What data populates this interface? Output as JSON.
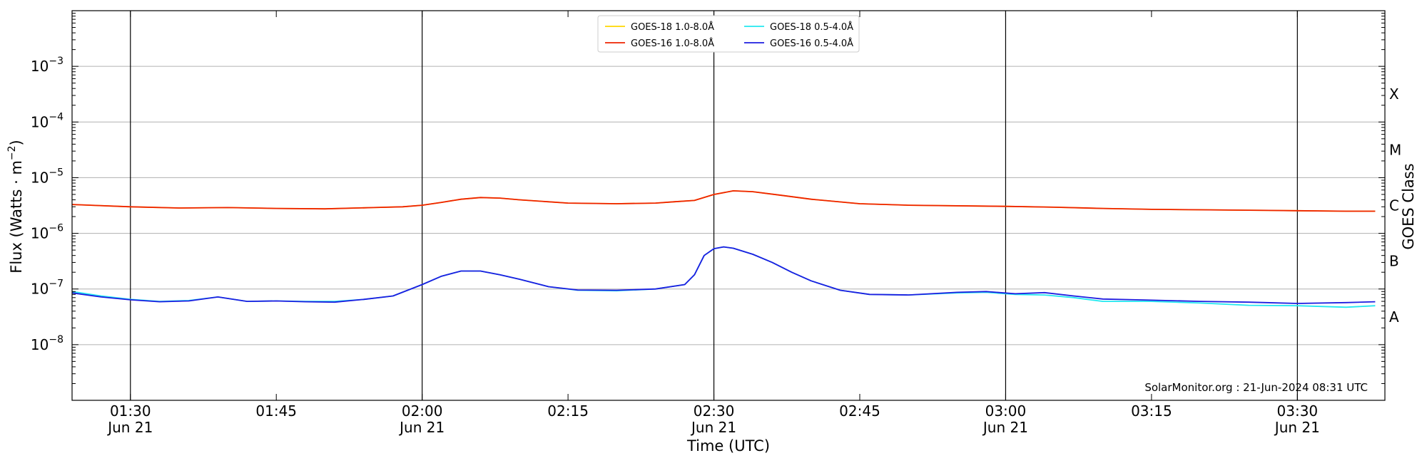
{
  "chart_data": {
    "type": "line",
    "title": "",
    "xlabel": "Time (UTC)",
    "ylabel": "Flux (Watts · m",
    "ylabel_exponent": "−2",
    "ylabel_close": ")",
    "right_label": "GOES Class",
    "y_scale": "log",
    "ylim": [
      1e-09,
      0.01
    ],
    "xlim": [
      "2024-06-21T01:24",
      "2024-06-21T03:39"
    ],
    "y_ticks": [
      {
        "value": 1e-08,
        "base": "10",
        "exp": "−8"
      },
      {
        "value": 1e-07,
        "base": "10",
        "exp": "−7"
      },
      {
        "value": 1e-06,
        "base": "10",
        "exp": "−6"
      },
      {
        "value": 1e-05,
        "base": "10",
        "exp": "−5"
      },
      {
        "value": 0.0001,
        "base": "10",
        "exp": "−4"
      },
      {
        "value": 0.001,
        "base": "10",
        "exp": "−3"
      }
    ],
    "x_ticks": [
      {
        "time": "2024-06-21T01:30",
        "label": "01:30",
        "sublabel": "Jun 21",
        "major": true
      },
      {
        "time": "2024-06-21T01:45",
        "label": "01:45",
        "sublabel": "",
        "major": false
      },
      {
        "time": "2024-06-21T02:00",
        "label": "02:00",
        "sublabel": "Jun 21",
        "major": true
      },
      {
        "time": "2024-06-21T02:15",
        "label": "02:15",
        "sublabel": "",
        "major": false
      },
      {
        "time": "2024-06-21T02:30",
        "label": "02:30",
        "sublabel": "Jun 21",
        "major": true
      },
      {
        "time": "2024-06-21T02:45",
        "label": "02:45",
        "sublabel": "",
        "major": false
      },
      {
        "time": "2024-06-21T03:00",
        "label": "03:00",
        "sublabel": "Jun 21",
        "major": true
      },
      {
        "time": "2024-06-21T03:15",
        "label": "03:15",
        "sublabel": "",
        "major": false
      },
      {
        "time": "2024-06-21T03:30",
        "label": "03:30",
        "sublabel": "Jun 21",
        "major": true
      }
    ],
    "goes_classes": [
      {
        "label": "A",
        "value": 1e-08
      },
      {
        "label": "B",
        "value": 1e-07
      },
      {
        "label": "C",
        "value": 1e-06
      },
      {
        "label": "M",
        "value": 1e-05
      },
      {
        "label": "X",
        "value": 0.0001
      }
    ],
    "grid": true,
    "legend_position": "top-center",
    "credit": "SolarMonitor.org : 21-Jun-2024 08:31 UTC",
    "series": [
      {
        "name": "GOES-18 1.0-8.0Å",
        "color": "#ffd700",
        "x": [
          "2024-06-21T01:24",
          "2024-06-21T01:30",
          "2024-06-21T01:35",
          "2024-06-21T01:40",
          "2024-06-21T01:45",
          "2024-06-21T01:50",
          "2024-06-21T01:55",
          "2024-06-21T01:58",
          "2024-06-21T02:00",
          "2024-06-21T02:02",
          "2024-06-21T02:04",
          "2024-06-21T02:06",
          "2024-06-21T02:08",
          "2024-06-21T02:10",
          "2024-06-21T02:15",
          "2024-06-21T02:20",
          "2024-06-21T02:24",
          "2024-06-21T02:26",
          "2024-06-21T02:28",
          "2024-06-21T02:30",
          "2024-06-21T02:32",
          "2024-06-21T02:34",
          "2024-06-21T02:37",
          "2024-06-21T02:40",
          "2024-06-21T02:45",
          "2024-06-21T02:50",
          "2024-06-21T03:00",
          "2024-06-21T03:05",
          "2024-06-21T03:10",
          "2024-06-21T03:15",
          "2024-06-21T03:20",
          "2024-06-21T03:25",
          "2024-06-21T03:30",
          "2024-06-21T03:35",
          "2024-06-21T03:38"
        ],
        "values": [
          3.3e-06,
          3e-06,
          2.85e-06,
          2.9e-06,
          2.8e-06,
          2.75e-06,
          2.9e-06,
          3e-06,
          3.2e-06,
          3.6e-06,
          4.1e-06,
          4.4e-06,
          4.3e-06,
          4e-06,
          3.5e-06,
          3.4e-06,
          3.5e-06,
          3.7e-06,
          3.9e-06,
          5e-06,
          5.8e-06,
          5.6e-06,
          4.8e-06,
          4.1e-06,
          3.4e-06,
          3.2e-06,
          3.05e-06,
          2.95e-06,
          2.8e-06,
          2.7e-06,
          2.65e-06,
          2.6e-06,
          2.55e-06,
          2.5e-06,
          2.5e-06
        ]
      },
      {
        "name": "GOES-16 1.0-8.0Å",
        "color": "#ee2200",
        "x": [
          "2024-06-21T01:24",
          "2024-06-21T01:30",
          "2024-06-21T01:35",
          "2024-06-21T01:40",
          "2024-06-21T01:45",
          "2024-06-21T01:50",
          "2024-06-21T01:55",
          "2024-06-21T01:58",
          "2024-06-21T02:00",
          "2024-06-21T02:02",
          "2024-06-21T02:04",
          "2024-06-21T02:06",
          "2024-06-21T02:08",
          "2024-06-21T02:10",
          "2024-06-21T02:15",
          "2024-06-21T02:20",
          "2024-06-21T02:24",
          "2024-06-21T02:26",
          "2024-06-21T02:28",
          "2024-06-21T02:30",
          "2024-06-21T02:32",
          "2024-06-21T02:34",
          "2024-06-21T02:37",
          "2024-06-21T02:40",
          "2024-06-21T02:45",
          "2024-06-21T02:50",
          "2024-06-21T03:00",
          "2024-06-21T03:05",
          "2024-06-21T03:10",
          "2024-06-21T03:15",
          "2024-06-21T03:20",
          "2024-06-21T03:25",
          "2024-06-21T03:30",
          "2024-06-21T03:35",
          "2024-06-21T03:38"
        ],
        "values": [
          3.3e-06,
          3e-06,
          2.85e-06,
          2.9e-06,
          2.8e-06,
          2.75e-06,
          2.9e-06,
          3e-06,
          3.2e-06,
          3.6e-06,
          4.1e-06,
          4.4e-06,
          4.3e-06,
          4e-06,
          3.5e-06,
          3.4e-06,
          3.5e-06,
          3.7e-06,
          3.9e-06,
          5e-06,
          5.8e-06,
          5.6e-06,
          4.8e-06,
          4.1e-06,
          3.4e-06,
          3.2e-06,
          3.05e-06,
          2.95e-06,
          2.8e-06,
          2.7e-06,
          2.65e-06,
          2.6e-06,
          2.55e-06,
          2.5e-06,
          2.5e-06
        ]
      },
      {
        "name": "GOES-18 0.5-4.0Å",
        "color": "#22e8f0",
        "x": [
          "2024-06-21T01:24",
          "2024-06-21T01:27",
          "2024-06-21T01:30",
          "2024-06-21T01:33",
          "2024-06-21T01:36",
          "2024-06-21T01:39",
          "2024-06-21T01:42",
          "2024-06-21T01:45",
          "2024-06-21T01:48",
          "2024-06-21T01:51",
          "2024-06-21T01:54",
          "2024-06-21T01:57",
          "2024-06-21T02:00",
          "2024-06-21T02:02",
          "2024-06-21T02:04",
          "2024-06-21T02:06",
          "2024-06-21T02:08",
          "2024-06-21T02:10",
          "2024-06-21T02:13",
          "2024-06-21T02:16",
          "2024-06-21T02:20",
          "2024-06-21T02:24",
          "2024-06-21T02:27",
          "2024-06-21T02:28",
          "2024-06-21T02:29",
          "2024-06-21T02:30",
          "2024-06-21T02:31",
          "2024-06-21T02:32",
          "2024-06-21T02:34",
          "2024-06-21T02:36",
          "2024-06-21T02:38",
          "2024-06-21T02:40",
          "2024-06-21T02:43",
          "2024-06-21T02:46",
          "2024-06-21T02:50",
          "2024-06-21T02:55",
          "2024-06-21T02:58",
          "2024-06-21T03:01",
          "2024-06-21T03:04",
          "2024-06-21T03:07",
          "2024-06-21T03:10",
          "2024-06-21T03:15",
          "2024-06-21T03:20",
          "2024-06-21T03:25",
          "2024-06-21T03:30",
          "2024-06-21T03:35",
          "2024-06-21T03:38"
        ],
        "values": [
          9e-08,
          7.5e-08,
          6.5e-08,
          6e-08,
          6.2e-08,
          7.2e-08,
          6e-08,
          6.1e-08,
          6e-08,
          6e-08,
          6.5e-08,
          7.5e-08,
          1.2e-07,
          1.7e-07,
          2.1e-07,
          2.1e-07,
          1.8e-07,
          1.5e-07,
          1.1e-07,
          9.5e-08,
          9.3e-08,
          1e-07,
          1.2e-07,
          1.8e-07,
          4e-07,
          5.3e-07,
          5.7e-07,
          5.4e-07,
          4.2e-07,
          3e-07,
          2e-07,
          1.4e-07,
          9.5e-08,
          8e-08,
          7.8e-08,
          8.5e-08,
          8.7e-08,
          8e-08,
          7.8e-08,
          7e-08,
          6e-08,
          6e-08,
          5.6e-08,
          5.1e-08,
          5e-08,
          4.7e-08,
          5e-08
        ]
      },
      {
        "name": "GOES-16 0.5-4.0Å",
        "color": "#1d1de0",
        "x": [
          "2024-06-21T01:24",
          "2024-06-21T01:27",
          "2024-06-21T01:30",
          "2024-06-21T01:33",
          "2024-06-21T01:36",
          "2024-06-21T01:39",
          "2024-06-21T01:42",
          "2024-06-21T01:45",
          "2024-06-21T01:48",
          "2024-06-21T01:51",
          "2024-06-21T01:54",
          "2024-06-21T01:57",
          "2024-06-21T02:00",
          "2024-06-21T02:02",
          "2024-06-21T02:04",
          "2024-06-21T02:06",
          "2024-06-21T02:08",
          "2024-06-21T02:10",
          "2024-06-21T02:13",
          "2024-06-21T02:16",
          "2024-06-21T02:20",
          "2024-06-21T02:24",
          "2024-06-21T02:27",
          "2024-06-21T02:28",
          "2024-06-21T02:29",
          "2024-06-21T02:30",
          "2024-06-21T02:31",
          "2024-06-21T02:32",
          "2024-06-21T02:34",
          "2024-06-21T02:36",
          "2024-06-21T02:38",
          "2024-06-21T02:40",
          "2024-06-21T02:43",
          "2024-06-21T02:46",
          "2024-06-21T02:50",
          "2024-06-21T02:55",
          "2024-06-21T02:58",
          "2024-06-21T03:01",
          "2024-06-21T03:04",
          "2024-06-21T03:07",
          "2024-06-21T03:10",
          "2024-06-21T03:15",
          "2024-06-21T03:20",
          "2024-06-21T03:25",
          "2024-06-21T03:30",
          "2024-06-21T03:35",
          "2024-06-21T03:38"
        ],
        "values": [
          8.5e-08,
          7.2e-08,
          6.4e-08,
          5.9e-08,
          6.1e-08,
          7.2e-08,
          6e-08,
          6.1e-08,
          5.9e-08,
          5.8e-08,
          6.5e-08,
          7.5e-08,
          1.2e-07,
          1.7e-07,
          2.1e-07,
          2.1e-07,
          1.8e-07,
          1.5e-07,
          1.1e-07,
          9.6e-08,
          9.5e-08,
          1e-07,
          1.2e-07,
          1.8e-07,
          4e-07,
          5.3e-07,
          5.7e-07,
          5.4e-07,
          4.2e-07,
          3e-07,
          2e-07,
          1.4e-07,
          9.5e-08,
          8e-08,
          7.8e-08,
          8.7e-08,
          9e-08,
          8.2e-08,
          8.6e-08,
          7.5e-08,
          6.6e-08,
          6.3e-08,
          6e-08,
          5.8e-08,
          5.5e-08,
          5.7e-08,
          5.9e-08
        ]
      }
    ]
  }
}
